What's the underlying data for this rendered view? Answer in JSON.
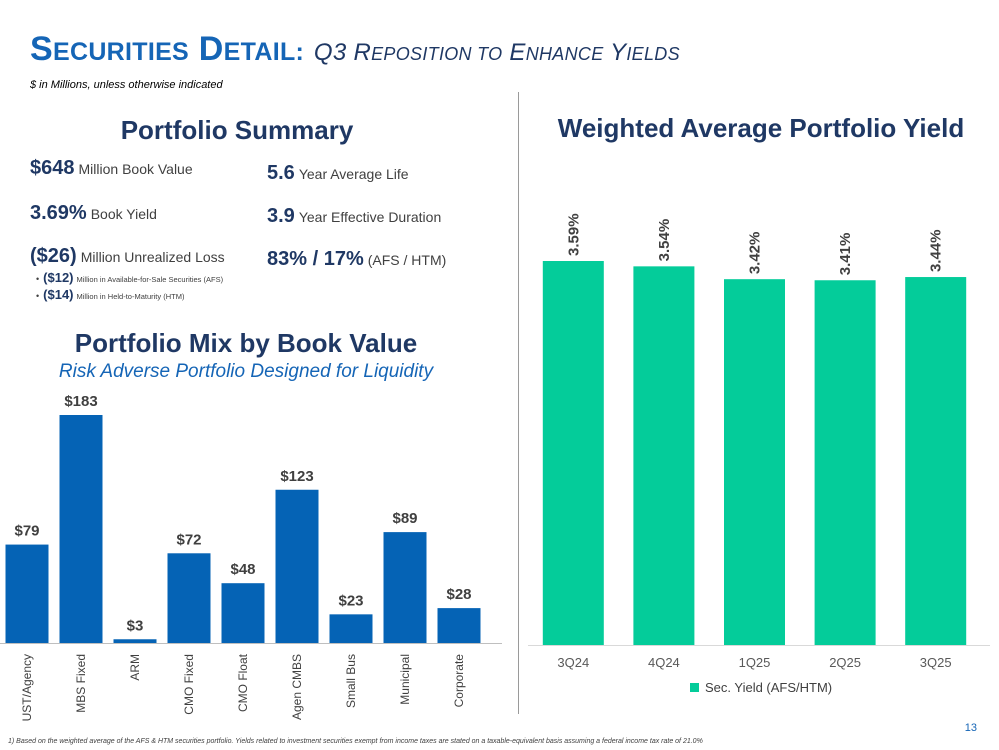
{
  "header": {
    "title_main_first": "S",
    "title_main_first_rest": "ECURITIES",
    "title_main_second": "D",
    "title_main_second_rest": "ETAIL:",
    "title_sub_q3": "Q3 R",
    "title_sub_reposition_rest": "EPOSITION TO",
    "title_sub_e": "E",
    "title_sub_enhance_rest": "NHANCE",
    "title_sub_y": "Y",
    "title_sub_yields_rest": "IELDS",
    "units_note": "$ in Millions, unless otherwise indicated"
  },
  "portfolio_summary": {
    "heading": "Portfolio Summary",
    "book_value_num": "$648",
    "book_value_label": "Million Book Value",
    "book_yield_num": "3.69%",
    "book_yield_label": "Book Yield",
    "unrealized_num": "($26)",
    "unrealized_label": "Million Unrealized Loss",
    "afs_loss_num": "($12)",
    "afs_loss_label": "Million in Available-for-Sale Securities (AFS)",
    "htm_loss_num": "($14)",
    "htm_loss_label": "Million in Held-to-Maturity (HTM)",
    "avg_life_num": "5.6",
    "avg_life_label": "Year Average Life",
    "duration_num": "3.9",
    "duration_label": "Year Effective Duration",
    "split_num": "83% / 17%",
    "split_label": "(AFS / HTM)"
  },
  "portfolio_mix": {
    "heading": "Portfolio Mix by Book Value",
    "subheading": "Risk Adverse Portfolio Designed for Liquidity"
  },
  "yield_section": {
    "heading": "Weighted Average Portfolio Yield",
    "legend_label": "Sec. Yield (AFS/HTM)"
  },
  "colors": {
    "mix_bar": "#0563b5",
    "yield_bar": "#04cc9a",
    "title_blue": "#1565b6",
    "navy": "#1f3864"
  },
  "chart_data": [
    {
      "type": "bar",
      "categories": [
        "UST/Agency",
        "MBS Fixed",
        "ARM",
        "CMO Fixed",
        "CMO Float",
        "Agen CMBS",
        "Small Bus",
        "Municipal",
        "Corporate"
      ],
      "values": [
        79,
        183,
        3,
        72,
        48,
        123,
        23,
        89,
        28
      ],
      "data_labels": [
        "$79",
        "$183",
        "$3",
        "$72",
        "$48",
        "$123",
        "$23",
        "$89",
        "$28"
      ],
      "ylim": [
        0,
        183
      ],
      "grid": false,
      "legend": "none"
    },
    {
      "type": "bar",
      "categories": [
        "3Q24",
        "4Q24",
        "1Q25",
        "2Q25",
        "3Q25"
      ],
      "series": [
        {
          "name": "Sec. Yield (AFS/HTM)",
          "values": [
            3.59,
            3.54,
            3.42,
            3.41,
            3.44
          ]
        }
      ],
      "data_labels": [
        "3.59%",
        "3.54%",
        "3.42%",
        "3.41%",
        "3.44%"
      ],
      "ylim": [
        0,
        3.59
      ],
      "grid": false,
      "legend": "bottom"
    }
  ],
  "footer": {
    "page_number": "13",
    "footnote": "1)  Based on the weighted average of the AFS & HTM securities portfolio. Yields related to investment securities exempt from income taxes are stated on a taxable-equivalent basis assuming a federal income tax rate of 21.0%"
  }
}
